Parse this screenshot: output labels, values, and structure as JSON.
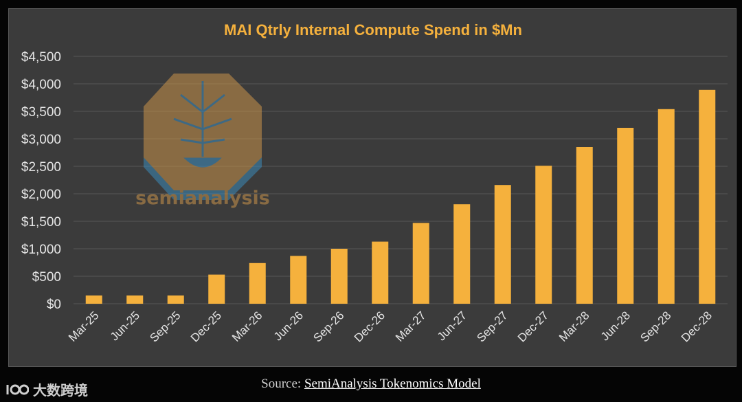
{
  "chart_data": {
    "type": "bar",
    "title": "MAI Qtrly Internal Compute Spend in $Mn",
    "categories": [
      "Mar-25",
      "Jun-25",
      "Sep-25",
      "Dec-25",
      "Mar-26",
      "Jun-26",
      "Sep-26",
      "Dec-26",
      "Mar-27",
      "Jun-27",
      "Sep-27",
      "Dec-27",
      "Mar-28",
      "Jun-28",
      "Sep-28",
      "Dec-28"
    ],
    "values": [
      150,
      150,
      150,
      530,
      740,
      870,
      1000,
      1130,
      1470,
      1810,
      2160,
      2510,
      2850,
      3200,
      3540,
      3890
    ],
    "ylim": [
      0,
      4500
    ],
    "yticks": [
      0,
      500,
      1000,
      1500,
      2000,
      2500,
      3000,
      3500,
      4000,
      4500
    ],
    "ytick_labels": [
      "$0",
      "$500",
      "$1,000",
      "$1,500",
      "$2,000",
      "$2,500",
      "$3,000",
      "$3,500",
      "$4,000",
      "$4,500"
    ],
    "xlabel": "",
    "ylabel": "",
    "grid": true,
    "bar_color": "#f5b13d"
  },
  "watermark": {
    "text": "semianalysis"
  },
  "footer": {
    "source_prefix": "Source: ",
    "source_link": "SemiAnalysis Tokenomics Model",
    "brand_text": "大数跨境"
  }
}
